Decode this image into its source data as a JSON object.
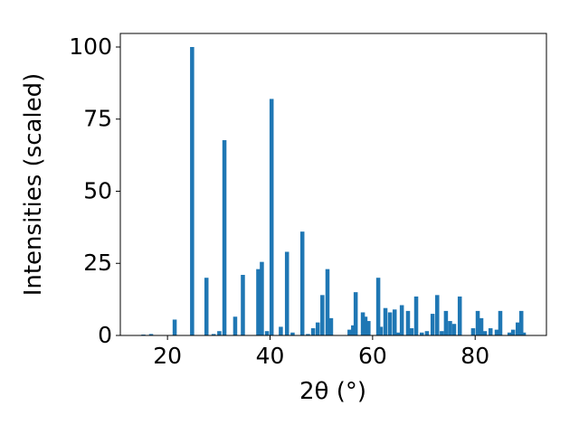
{
  "chart_data": {
    "type": "bar",
    "xlabel": "2θ (°)",
    "ylabel": "Intensities (scaled)",
    "color": "#1f77b4",
    "x": [
      15.3,
      16.8,
      21.4,
      24.8,
      27.6,
      29.0,
      30.1,
      31.1,
      33.2,
      34.7,
      37.7,
      38.4,
      39.4,
      40.3,
      42.1,
      43.3,
      44.4,
      46.3,
      47.4,
      48.4,
      49.3,
      50.2,
      51.2,
      51.9,
      55.5,
      56.2,
      56.7,
      58.1,
      58.6,
      59.2,
      61.1,
      61.6,
      62.5,
      63.4,
      64.3,
      65.0,
      65.7,
      66.9,
      67.6,
      68.5,
      69.6,
      70.6,
      71.7,
      72.6,
      73.5,
      74.3,
      75.1,
      75.9,
      77.0,
      79.6,
      80.5,
      81.2,
      81.9,
      83.0,
      84.2,
      84.9,
      86.7,
      87.4,
      88.3,
      89.0,
      89.5
    ],
    "values": [
      0.3,
      0.5,
      5.5,
      100,
      20,
      0.5,
      1.5,
      67.7,
      6.5,
      21,
      23,
      25.5,
      1.5,
      82,
      3,
      29,
      1,
      36,
      0.5,
      2.5,
      4.5,
      14,
      23,
      6,
      2,
      3.5,
      15,
      8,
      6.5,
      5,
      20,
      3,
      9.5,
      8,
      9,
      1,
      10.5,
      8.5,
      2.5,
      13.5,
      1,
      1.5,
      7.5,
      14,
      1.5,
      8.5,
      5,
      4,
      13.5,
      2.5,
      8.5,
      6,
      1.5,
      2.5,
      2,
      8.5,
      1,
      2,
      4.5,
      8.5,
      1
    ],
    "xlim": [
      10.8,
      93.9
    ],
    "xticks": [
      20,
      40,
      60,
      80
    ],
    "ylim": [
      0,
      104.7
    ],
    "yticks": [
      0,
      25,
      50,
      75,
      100
    ]
  }
}
